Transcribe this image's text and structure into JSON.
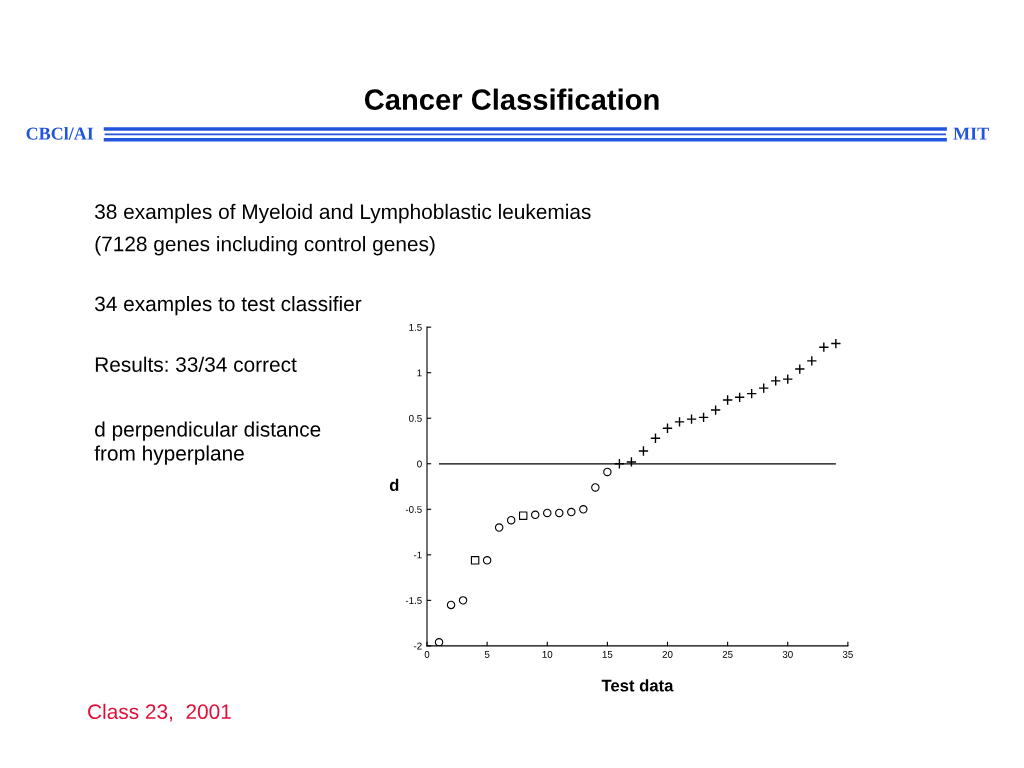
{
  "chart_data": {
    "type": "scatter",
    "title": "Cancer Classification",
    "xlabel": "Test data",
    "ylabel": "d",
    "annotations": [
      "CBCl/AI",
      "MIT",
      "38 examples of Myeloid and Lymphoblastic leukemias",
      "(7128 genes including control genes)",
      "34 examples to test classifier",
      "Results: 33/34 correct",
      "d perpendicular distance\nfrom hyperplane",
      "Class 23,  2001"
    ],
    "series": [
      {
        "color": "#000000",
        "marker": "circle",
        "x": [
          1,
          2,
          3,
          5,
          6,
          7,
          9,
          10,
          11,
          12,
          13,
          14,
          15
        ],
        "values": [
          -1.96,
          -1.55,
          -1.5,
          -1.06,
          -0.7,
          -0.62,
          -0.56,
          -0.54,
          -0.54,
          -0.53,
          -0.5,
          -0.26,
          -0.09
        ]
      },
      {
        "color": "#000000",
        "marker": "square",
        "x": [
          4,
          8
        ],
        "values": [
          -1.06,
          -0.57
        ]
      },
      {
        "color": "#000000",
        "marker": "cross",
        "x": [
          16,
          17,
          18,
          19,
          20,
          21,
          22,
          23,
          24,
          25,
          26,
          27,
          28,
          29,
          30,
          31,
          32,
          33,
          34
        ],
        "values": [
          0.0,
          0.02,
          0.14,
          0.28,
          0.39,
          0.46,
          0.49,
          0.51,
          0.59,
          0.7,
          0.73,
          0.77,
          0.83,
          0.91,
          0.93,
          1.04,
          1.13,
          1.28,
          1.32
        ]
      }
    ],
    "ref_lines": [
      {
        "axis": "y",
        "value": 0,
        "color": "#000000"
      }
    ],
    "xlim": [
      0,
      35
    ],
    "ylim": [
      -2,
      1.5
    ],
    "xticks": [
      0,
      5,
      10,
      15,
      20,
      25,
      30,
      35
    ],
    "yticks": [
      -2,
      -1.5,
      -1,
      -0.5,
      0,
      0.5,
      1,
      1.5
    ],
    "grid": false,
    "legend": false
  }
}
